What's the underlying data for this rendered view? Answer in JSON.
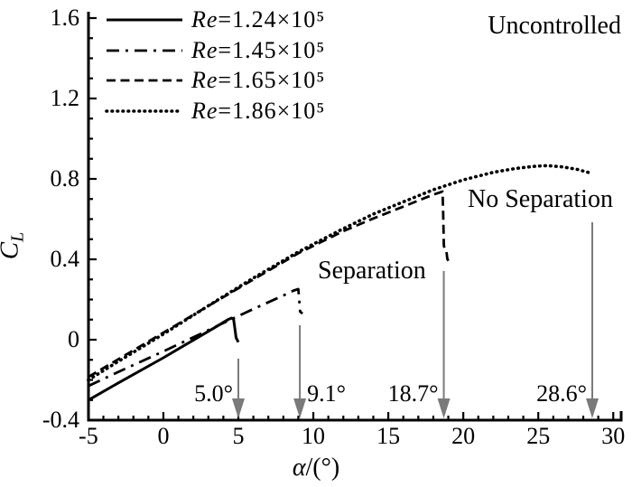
{
  "chart_data": {
    "type": "line",
    "title": "",
    "corner_note": "Uncontrolled",
    "xlabel": {
      "italic": "α",
      "rest": "/(°)"
    },
    "ylabel": {
      "main": "C",
      "sub": "L"
    },
    "xlim": [
      -5,
      30
    ],
    "ylim": [
      -0.4,
      1.6
    ],
    "x_major_ticks": [
      -5,
      0,
      5,
      10,
      15,
      20,
      25,
      30
    ],
    "x_tick_labels": [
      "-5",
      "0",
      "5",
      "10",
      "15",
      "20",
      "25",
      "30"
    ],
    "x_minor_step": 1,
    "y_major_ticks": [
      -0.4,
      0,
      0.4,
      0.8,
      1.2,
      1.6
    ],
    "y_tick_labels": [
      "-0.4",
      "0",
      "0.4",
      "0.8",
      "1.2",
      "1.6"
    ],
    "y_minor_step": 0.1,
    "grid": false,
    "legend_position": "upper-left-inside",
    "series": [
      {
        "name_italic": "Re",
        "name_rest": "=1.24×10⁵",
        "style": "solid",
        "points": [
          [
            -5,
            -0.3
          ],
          [
            -3,
            -0.215
          ],
          [
            0,
            -0.09
          ],
          [
            2,
            -0.002
          ],
          [
            3.5,
            0.064
          ],
          [
            4.3,
            0.1
          ],
          [
            4.55,
            0.108
          ],
          [
            4.68,
            0.102
          ],
          [
            4.76,
            0.06
          ],
          [
            4.85,
            0.01
          ],
          [
            5.0,
            -0.012
          ]
        ]
      },
      {
        "name_italic": "Re",
        "name_rest": "=1.45×10⁵",
        "style": "dashdot",
        "points": [
          [
            -5,
            -0.23
          ],
          [
            -3,
            -0.16
          ],
          [
            0,
            -0.058
          ],
          [
            2,
            0.012
          ],
          [
            4,
            0.083
          ],
          [
            6,
            0.153
          ],
          [
            8,
            0.22
          ],
          [
            8.7,
            0.245
          ],
          [
            9.0,
            0.252
          ],
          [
            9.06,
            0.2
          ],
          [
            9.12,
            0.14
          ],
          [
            9.28,
            0.13
          ]
        ]
      },
      {
        "name_italic": "Re",
        "name_rest": "=1.65×10⁵",
        "style": "dashed",
        "points": [
          [
            -5,
            -0.185
          ],
          [
            -3,
            -0.097
          ],
          [
            0,
            0.035
          ],
          [
            3,
            0.168
          ],
          [
            6,
            0.3
          ],
          [
            9,
            0.43
          ],
          [
            12,
            0.54
          ],
          [
            14,
            0.603
          ],
          [
            16,
            0.662
          ],
          [
            17,
            0.692
          ],
          [
            18,
            0.722
          ],
          [
            18.45,
            0.733
          ],
          [
            18.62,
            0.737
          ],
          [
            18.66,
            0.62
          ],
          [
            18.7,
            0.47
          ],
          [
            18.76,
            0.448
          ],
          [
            18.88,
            0.437
          ],
          [
            18.94,
            0.402
          ],
          [
            19.05,
            0.386
          ]
        ]
      },
      {
        "name_italic": "Re",
        "name_rest": "=1.86×10⁵",
        "style": "dotted",
        "points": [
          [
            -5,
            -0.2
          ],
          [
            -3,
            -0.108
          ],
          [
            0,
            0.028
          ],
          [
            3,
            0.169
          ],
          [
            6,
            0.307
          ],
          [
            9,
            0.437
          ],
          [
            12,
            0.553
          ],
          [
            14,
            0.625
          ],
          [
            16,
            0.686
          ],
          [
            18,
            0.746
          ],
          [
            20,
            0.795
          ],
          [
            22,
            0.833
          ],
          [
            23.5,
            0.852
          ],
          [
            24.8,
            0.863
          ],
          [
            25.6,
            0.866
          ],
          [
            26.6,
            0.86
          ],
          [
            27.6,
            0.847
          ],
          [
            28.55,
            0.828
          ]
        ]
      }
    ],
    "annotations": {
      "corner_label": "Uncontrolled",
      "separation": "Separation",
      "no_separation": "No Separation",
      "arrows": [
        {
          "alpha": 5.0,
          "label": "5.0°",
          "side": "left",
          "top_cl": -0.094
        },
        {
          "alpha": 9.1,
          "label": "9.1°",
          "side": "right",
          "top_cl": 0.072
        },
        {
          "alpha": 18.7,
          "label": "18.7°",
          "side": "left",
          "top_cl": 0.342
        },
        {
          "alpha": 28.6,
          "label": "28.6°",
          "side": "left",
          "top_cl": 0.584
        }
      ]
    },
    "colors": {
      "line": "#000000",
      "arrow": "#7a7a7a",
      "background": "#ffffff",
      "text": "#000000"
    }
  }
}
